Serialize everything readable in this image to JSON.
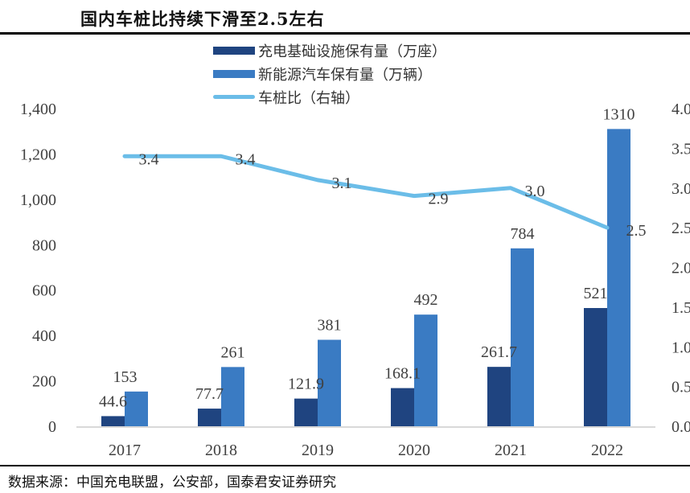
{
  "title": "国内车桩比持续下滑至2.5左右",
  "source": "数据来源：中国充电联盟，公安部，国泰君安证券研究",
  "colors": {
    "charging": "#1f4480",
    "ev": "#3a7bc3",
    "ratio": "#6bbde8",
    "axis": "#d9d9d9",
    "text": "#404040"
  },
  "legend": [
    {
      "label": "充电基础设施保有量（万座）",
      "kind": "bar",
      "color": "#1f4480"
    },
    {
      "label": "新能源汽车保有量（万辆）",
      "kind": "bar",
      "color": "#3a7bc3"
    },
    {
      "label": "车桩比（右轴）",
      "kind": "line",
      "color": "#6bbde8"
    }
  ],
  "chart_data": {
    "type": "bar",
    "title": "国内车桩比持续下滑至2.5左右",
    "categories": [
      "2017",
      "2018",
      "2019",
      "2020",
      "2021",
      "2022"
    ],
    "series": [
      {
        "name": "充电基础设施保有量（万座）",
        "type": "bar",
        "axis": "left",
        "values": [
          44.6,
          77.7,
          121.9,
          168.1,
          261.7,
          521
        ],
        "labels": [
          "44.6",
          "77.7",
          "121.9",
          "168.1",
          "261.7",
          "521"
        ]
      },
      {
        "name": "新能源汽车保有量（万辆）",
        "type": "bar",
        "axis": "left",
        "values": [
          153,
          261,
          381,
          492,
          784,
          1310
        ],
        "labels": [
          "153",
          "261",
          "381",
          "492",
          "784",
          "1310"
        ]
      },
      {
        "name": "车桩比（右轴）",
        "type": "line",
        "axis": "right",
        "values": [
          3.4,
          3.4,
          3.1,
          2.9,
          3.0,
          2.5
        ],
        "labels": [
          "3.4",
          "3.4",
          "3.1",
          "2.9",
          "3.0",
          "2.5"
        ]
      }
    ],
    "y_left": {
      "ylim": [
        0,
        1400
      ],
      "ticks": [
        "0",
        "200",
        "400",
        "600",
        "800",
        "1,000",
        "1,200",
        "1,400"
      ]
    },
    "y_right": {
      "ylim": [
        0,
        4.0
      ],
      "ticks": [
        "0.0",
        "0.5",
        "1.0",
        "1.5",
        "2.0",
        "2.5",
        "3.0",
        "3.5",
        "4.0"
      ]
    },
    "xlabel": "",
    "ylabel": "",
    "grid": false,
    "legend_position": "top-center"
  }
}
